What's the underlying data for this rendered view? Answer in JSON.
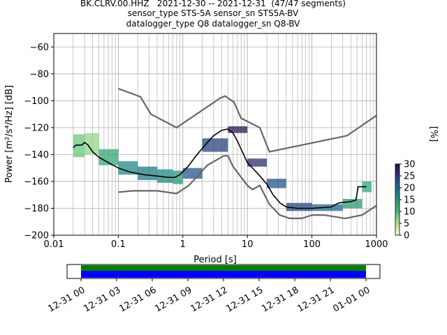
{
  "titles": {
    "line1": "BK.CLRV.00.HHZ   2021-12-30 -- 2021-12-31  (47/47 segments)",
    "line2": "sensor_type STS-5A sensor_sn STS5A-BV",
    "line3": "datalogger_type Q8 datalogger_sn Q8-BV"
  },
  "colorbar": {
    "label": "[%]",
    "ticks": [
      "0",
      "5",
      "10",
      "15",
      "20",
      "25",
      "30"
    ],
    "vmin": 0,
    "vmax": 30
  },
  "colors": {
    "noise_model": "#666666",
    "mean_line": "#000000",
    "grid": "#b0b0b0",
    "coverage_green": "#008000",
    "coverage_blue": "#0000ff"
  },
  "chart_data": {
    "type": "heatmap",
    "xlabel": "Period [s]",
    "ylabel": "Power [m²/s⁴/Hz] [dB]",
    "xscale": "log",
    "xlim": [
      0.01,
      1000
    ],
    "ylim": [
      -200,
      -50
    ],
    "xticks": [
      "0.01",
      "0.1",
      "1",
      "10",
      "100",
      "1000"
    ],
    "yticks": [
      "−200",
      "−180",
      "−160",
      "−140",
      "−120",
      "−100",
      "−80",
      "−60"
    ],
    "grid": true,
    "high_noise_model": [
      [
        0.1,
        -91
      ],
      [
        0.22,
        -97
      ],
      [
        0.32,
        -110
      ],
      [
        0.8,
        -120
      ],
      [
        3.8,
        -98
      ],
      [
        4.5,
        -96.5
      ],
      [
        6.2,
        -101
      ],
      [
        8,
        -113
      ],
      [
        15.6,
        -120
      ],
      [
        21.9,
        -138
      ],
      [
        350,
        -126
      ],
      [
        1000,
        -111
      ]
    ],
    "low_noise_model": [
      [
        0.1,
        -168
      ],
      [
        0.17,
        -167
      ],
      [
        0.4,
        -167
      ],
      [
        0.8,
        -169
      ],
      [
        1.24,
        -163
      ],
      [
        2.4,
        -148
      ],
      [
        4.3,
        -141
      ],
      [
        5,
        -141
      ],
      [
        6,
        -149
      ],
      [
        10,
        -163
      ],
      [
        12,
        -166
      ],
      [
        15.6,
        -163
      ],
      [
        21.9,
        -177
      ],
      [
        31.6,
        -185
      ],
      [
        45,
        -187.5
      ],
      [
        70,
        -187.5
      ],
      [
        101,
        -185
      ],
      [
        154,
        -185
      ],
      [
        328,
        -187.5
      ],
      [
        600,
        -185
      ],
      [
        1000,
        -178
      ]
    ],
    "mean_psd": [
      [
        0.02,
        -135
      ],
      [
        0.022,
        -133
      ],
      [
        0.027,
        -133
      ],
      [
        0.03,
        -131
      ],
      [
        0.034,
        -133
      ],
      [
        0.04,
        -138
      ],
      [
        0.05,
        -142
      ],
      [
        0.07,
        -146
      ],
      [
        0.1,
        -150
      ],
      [
        0.15,
        -153
      ],
      [
        0.25,
        -155
      ],
      [
        0.4,
        -156
      ],
      [
        0.6,
        -157
      ],
      [
        0.75,
        -157
      ],
      [
        0.9,
        -155
      ],
      [
        1.2,
        -149
      ],
      [
        1.6,
        -141
      ],
      [
        2.3,
        -132
      ],
      [
        3,
        -126
      ],
      [
        4,
        -122
      ],
      [
        5,
        -121
      ],
      [
        6,
        -124
      ],
      [
        7,
        -130
      ],
      [
        8,
        -136
      ],
      [
        10,
        -146
      ],
      [
        12,
        -150
      ],
      [
        15,
        -155
      ],
      [
        20,
        -162
      ],
      [
        25,
        -170
      ],
      [
        32,
        -176
      ],
      [
        40,
        -179
      ],
      [
        60,
        -180
      ],
      [
        100,
        -180
      ],
      [
        200,
        -179
      ],
      [
        260,
        -176
      ],
      [
        400,
        -175
      ],
      [
        480,
        -174
      ],
      [
        520,
        -164
      ],
      [
        700,
        -164
      ]
    ],
    "psd_density": [
      {
        "x": 0.02,
        "ymin": -142,
        "ymax": -125,
        "level": 8
      },
      {
        "x": 0.03,
        "ymin": -140,
        "ymax": -124,
        "level": 6
      },
      {
        "x": 0.05,
        "ymin": -148,
        "ymax": -136,
        "level": 12
      },
      {
        "x": 0.1,
        "ymin": -155,
        "ymax": -145,
        "level": 16
      },
      {
        "x": 0.2,
        "ymin": -159,
        "ymax": -149,
        "level": 18
      },
      {
        "x": 0.4,
        "ymin": -161,
        "ymax": -151,
        "level": 16
      },
      {
        "x": 0.7,
        "ymin": -162,
        "ymax": -152,
        "level": 14
      },
      {
        "x": 1,
        "ymin": -158,
        "ymax": -150,
        "level": 22
      },
      {
        "x": 2,
        "ymin": -138,
        "ymax": -128,
        "level": 24
      },
      {
        "x": 5,
        "ymin": -124,
        "ymax": -119,
        "level": 28
      },
      {
        "x": 10,
        "ymin": -149,
        "ymax": -143,
        "level": 26
      },
      {
        "x": 20,
        "ymin": -165,
        "ymax": -158,
        "level": 22
      },
      {
        "x": 40,
        "ymin": -182,
        "ymax": -176,
        "level": 24
      },
      {
        "x": 100,
        "ymin": -182,
        "ymax": -177,
        "level": 20
      },
      {
        "x": 300,
        "ymin": -180,
        "ymax": -173,
        "level": 14
      },
      {
        "x": 600,
        "ymin": -168,
        "ymax": -160,
        "level": 12
      }
    ],
    "coverage": {
      "xticks": [
        "12-31 00",
        "12-31 03",
        "12-31 06",
        "12-31 09",
        "12-31 12",
        "12-31 15",
        "12-31 18",
        "12-31 21",
        "01-01 00"
      ],
      "start": "12-31 00",
      "end": "01-01 00"
    }
  }
}
